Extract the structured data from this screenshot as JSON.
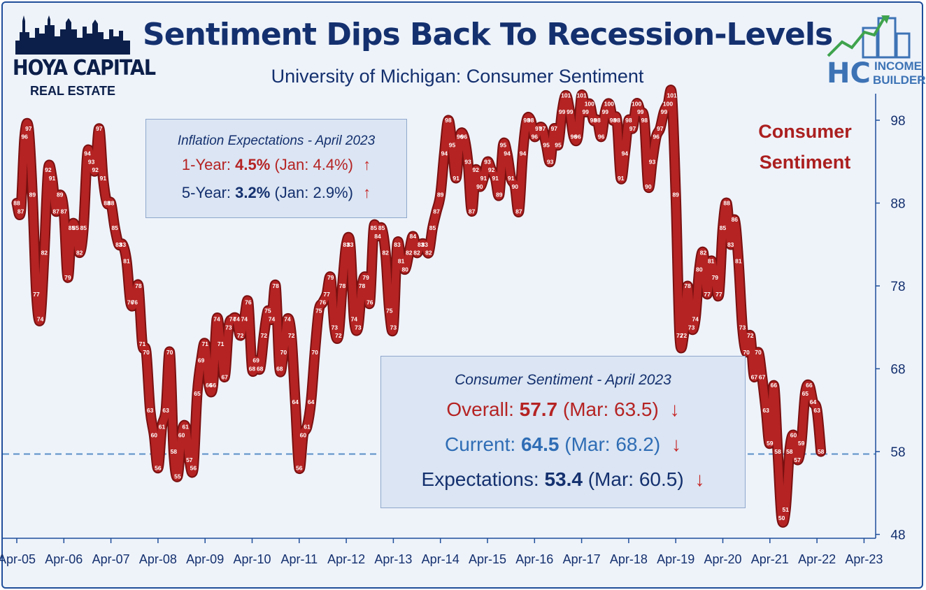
{
  "title": "Sentiment Dips Back To Recession-Levels",
  "subtitle": "University of Michigan: Consumer Sentiment",
  "logos": {
    "left": {
      "line1": "HOYA CAPITAL",
      "line2": "REAL ESTATE"
    },
    "right": {
      "mark": "HC",
      "line1": "INCOME",
      "line2": "BUILDER"
    }
  },
  "series_label": "Consumer Sentiment",
  "colors": {
    "series": "#b52323",
    "title": "#14306e",
    "current": "#2f6db5",
    "dashed": "#5b8fc7",
    "arrow": "#c62828"
  },
  "inflation_box": {
    "heading": "Inflation Expectations - April 2023",
    "rows": [
      {
        "label": "1-Year:",
        "value": "4.5%",
        "prior": "(Jan: 4.4%)",
        "arrow": "↑",
        "color": "#b52323"
      },
      {
        "label": "5-Year:",
        "value": "3.2%",
        "prior": "(Jan: 2.9%)",
        "arrow": "↑",
        "color": "#14306e"
      }
    ]
  },
  "sentiment_box": {
    "heading": "Consumer Sentiment - April 2023",
    "rows": [
      {
        "label": "Overall:",
        "value": "57.7",
        "prior": "(Mar: 63.5)",
        "arrow": "↓",
        "color": "#b52323"
      },
      {
        "label": "Current:",
        "value": "64.5",
        "prior": "(Mar: 68.2)",
        "arrow": "↓",
        "color": "#2f6db5"
      },
      {
        "label": "Expectations:",
        "value": "53.4",
        "prior": "(Mar: 60.5)",
        "arrow": "↓",
        "color": "#14306e"
      }
    ]
  },
  "chart_data": {
    "type": "line",
    "title": "Sentiment Dips Back To Recession-Levels",
    "subtitle": "University of Michigan: Consumer Sentiment",
    "series": [
      {
        "name": "Consumer Sentiment",
        "color": "#b52323"
      }
    ],
    "x_start": "Apr-05",
    "x_tick_labels": [
      "Apr-05",
      "Apr-06",
      "Apr-07",
      "Apr-08",
      "Apr-09",
      "Apr-10",
      "Apr-11",
      "Apr-12",
      "Apr-13",
      "Apr-14",
      "Apr-15",
      "Apr-16",
      "Apr-17",
      "Apr-18",
      "Apr-19",
      "Apr-20",
      "Apr-21",
      "Apr-22",
      "Apr-23"
    ],
    "y_ticks": [
      48,
      58,
      68,
      78,
      88,
      98
    ],
    "ylim": [
      48,
      102
    ],
    "reference_line": 57.7,
    "grid": false,
    "values": [
      88,
      87,
      96,
      97,
      89,
      77,
      74,
      82,
      92,
      91,
      87,
      89,
      87,
      79,
      85,
      85,
      82,
      85,
      94,
      93,
      92,
      97,
      91,
      88,
      88,
      85,
      83,
      83,
      81,
      76,
      76,
      78,
      71,
      70,
      63,
      60,
      56,
      61,
      63,
      70,
      58,
      55,
      60,
      61,
      57,
      56,
      65,
      69,
      71,
      66,
      66,
      74,
      71,
      67,
      73,
      74,
      74,
      72,
      74,
      76,
      68,
      69,
      68,
      72,
      75,
      74,
      78,
      68,
      70,
      74,
      72,
      64,
      56,
      60,
      61,
      64,
      70,
      75,
      76,
      77,
      79,
      73,
      72,
      78,
      83,
      83,
      74,
      73,
      78,
      79,
      76,
      85,
      84,
      85,
      82,
      75,
      73,
      83,
      81,
      80,
      82,
      84,
      82,
      83,
      83,
      82,
      85,
      87,
      89,
      94,
      98,
      95,
      91,
      96,
      96,
      93,
      87,
      92,
      90,
      91,
      93,
      92,
      91,
      89,
      95,
      94,
      91,
      90,
      87,
      94,
      98,
      98,
      96,
      97,
      97,
      95,
      93,
      97,
      95,
      99,
      101,
      99,
      96,
      96,
      101,
      99,
      100,
      98,
      98,
      96,
      99,
      100,
      98,
      98,
      91,
      94,
      98,
      97,
      100,
      99,
      98,
      90,
      93,
      96,
      97,
      99,
      100,
      101,
      89,
      72,
      72,
      78,
      73,
      74,
      80,
      82,
      77,
      81,
      79,
      77,
      85,
      88,
      83,
      86,
      81,
      73,
      70,
      72,
      67,
      70,
      67,
      63,
      59,
      66,
      58,
      50,
      51,
      58,
      60,
      57,
      59,
      65,
      66,
      64,
      63,
      58
    ],
    "point_labels": [
      "88",
      "87",
      "96",
      "97",
      "89",
      "77",
      "74",
      "82",
      "92",
      "91",
      "87",
      "89",
      "87",
      "79",
      "85",
      "85",
      "82",
      "85",
      "94",
      "93",
      "92",
      "97",
      "91",
      "88",
      "88",
      "85",
      "83",
      "83",
      "81",
      "76",
      "76",
      "78",
      "71",
      "70",
      "63",
      "60",
      "56",
      "61",
      "63",
      "70",
      "58",
      "55",
      "60",
      "61",
      "57",
      "56",
      "65",
      "69",
      "71",
      "66",
      "66",
      "74",
      "71",
      "67",
      "73",
      "74",
      "74",
      "72",
      "74",
      "76",
      "68",
      "69",
      "68",
      "72",
      "75",
      "74",
      "78",
      "68",
      "70",
      "74",
      "72",
      "64",
      "56",
      "60",
      "61",
      "64",
      "70",
      "75",
      "76",
      "77",
      "79",
      "73",
      "72",
      "78",
      "83",
      "83",
      "74",
      "73",
      "78",
      "79",
      "76",
      "85",
      "84",
      "85",
      "82",
      "75",
      "73",
      "83",
      "81",
      "80",
      "82",
      "84",
      "82",
      "83",
      "83",
      "82",
      "85",
      "87",
      "89",
      "94",
      "98",
      "95",
      "91",
      "96",
      "96",
      "93",
      "87",
      "92",
      "90",
      "91",
      "93",
      "92",
      "91",
      "89",
      "95",
      "94",
      "91",
      "90",
      "87",
      "94",
      "98",
      "98",
      "96",
      "97",
      "97",
      "95",
      "93",
      "97",
      "95",
      "99",
      "101",
      "99",
      "96",
      "96",
      "101",
      "99",
      "100",
      "98",
      "98",
      "96",
      "99",
      "100",
      "98",
      "98",
      "91",
      "94",
      "98",
      "97",
      "100",
      "99",
      "98",
      "90",
      "93",
      "96",
      "97",
      "99",
      "100",
      "101",
      "89",
      "72",
      "72",
      "78",
      "73",
      "74",
      "80",
      "82",
      "77",
      "81",
      "79",
      "77",
      "85",
      "88",
      "83",
      "86",
      "81",
      "73",
      "70",
      "72",
      "67",
      "70",
      "67",
      "63",
      "59",
      "66",
      "58",
      "50",
      "51",
      "58",
      "60",
      "57",
      "59",
      "65",
      "66",
      "64",
      "63",
      "58"
    ]
  }
}
